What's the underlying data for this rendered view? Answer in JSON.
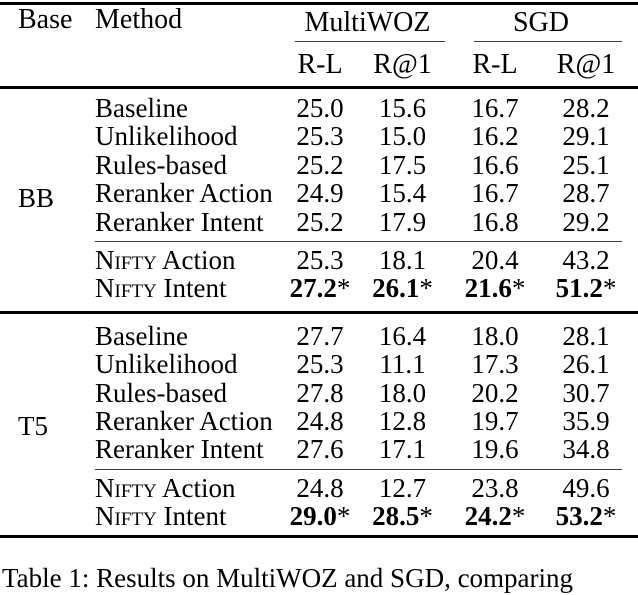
{
  "table": {
    "col_groups": [
      {
        "label": "MultiWOZ"
      },
      {
        "label": "SGD"
      }
    ],
    "col_headers": {
      "base": "Base",
      "method": "Method",
      "metrics": [
        "R-L",
        "R@1",
        "R-L",
        "R@1"
      ]
    },
    "sections": [
      {
        "base": "BB",
        "rows": [
          {
            "method_sc": "",
            "method": "Baseline",
            "values": [
              "25.0",
              "15.6",
              "16.7",
              "28.2"
            ],
            "bold": false,
            "starred": false
          },
          {
            "method_sc": "",
            "method": "Unlikelihood",
            "values": [
              "25.3",
              "15.0",
              "16.2",
              "29.1"
            ],
            "bold": false,
            "starred": false
          },
          {
            "method_sc": "",
            "method": "Rules-based",
            "values": [
              "25.2",
              "17.5",
              "16.6",
              "25.1"
            ],
            "bold": false,
            "starred": false
          },
          {
            "method_sc": "",
            "method": "Reranker Action",
            "values": [
              "24.9",
              "15.4",
              "16.7",
              "28.7"
            ],
            "bold": false,
            "starred": false
          },
          {
            "method_sc": "",
            "method": "Reranker Intent",
            "values": [
              "25.2",
              "17.9",
              "16.8",
              "29.2"
            ],
            "bold": false,
            "starred": false
          }
        ],
        "nifty_rows": [
          {
            "method_sc": "Nifty",
            "method": " Action",
            "values": [
              "25.3",
              "18.1",
              "20.4",
              "43.2"
            ],
            "bold": false,
            "starred": false
          },
          {
            "method_sc": "Nifty",
            "method": " Intent",
            "values": [
              "27.2",
              "26.1",
              "21.6",
              "51.2"
            ],
            "bold": true,
            "starred": true
          }
        ]
      },
      {
        "base": "T5",
        "rows": [
          {
            "method_sc": "",
            "method": "Baseline",
            "values": [
              "27.7",
              "16.4",
              "18.0",
              "28.1"
            ],
            "bold": false,
            "starred": false
          },
          {
            "method_sc": "",
            "method": "Unlikelihood",
            "values": [
              "25.3",
              "11.1",
              "17.3",
              "26.1"
            ],
            "bold": false,
            "starred": false
          },
          {
            "method_sc": "",
            "method": "Rules-based",
            "values": [
              "27.8",
              "18.0",
              "20.2",
              "30.7"
            ],
            "bold": false,
            "starred": false
          },
          {
            "method_sc": "",
            "method": "Reranker Action",
            "values": [
              "24.8",
              "12.8",
              "19.7",
              "35.9"
            ],
            "bold": false,
            "starred": false
          },
          {
            "method_sc": "",
            "method": "Reranker Intent",
            "values": [
              "27.6",
              "17.1",
              "19.6",
              "34.8"
            ],
            "bold": false,
            "starred": false
          }
        ],
        "nifty_rows": [
          {
            "method_sc": "Nifty",
            "method": " Action",
            "values": [
              "24.8",
              "12.7",
              "23.8",
              "49.6"
            ],
            "bold": false,
            "starred": false
          },
          {
            "method_sc": "Nifty",
            "method": " Intent",
            "values": [
              "29.0",
              "28.5",
              "24.2",
              "53.2"
            ],
            "bold": true,
            "starred": true
          }
        ]
      }
    ],
    "star_symbol": "*"
  },
  "caption": "Table 1: Results on MultiWOZ and SGD, comparing"
}
